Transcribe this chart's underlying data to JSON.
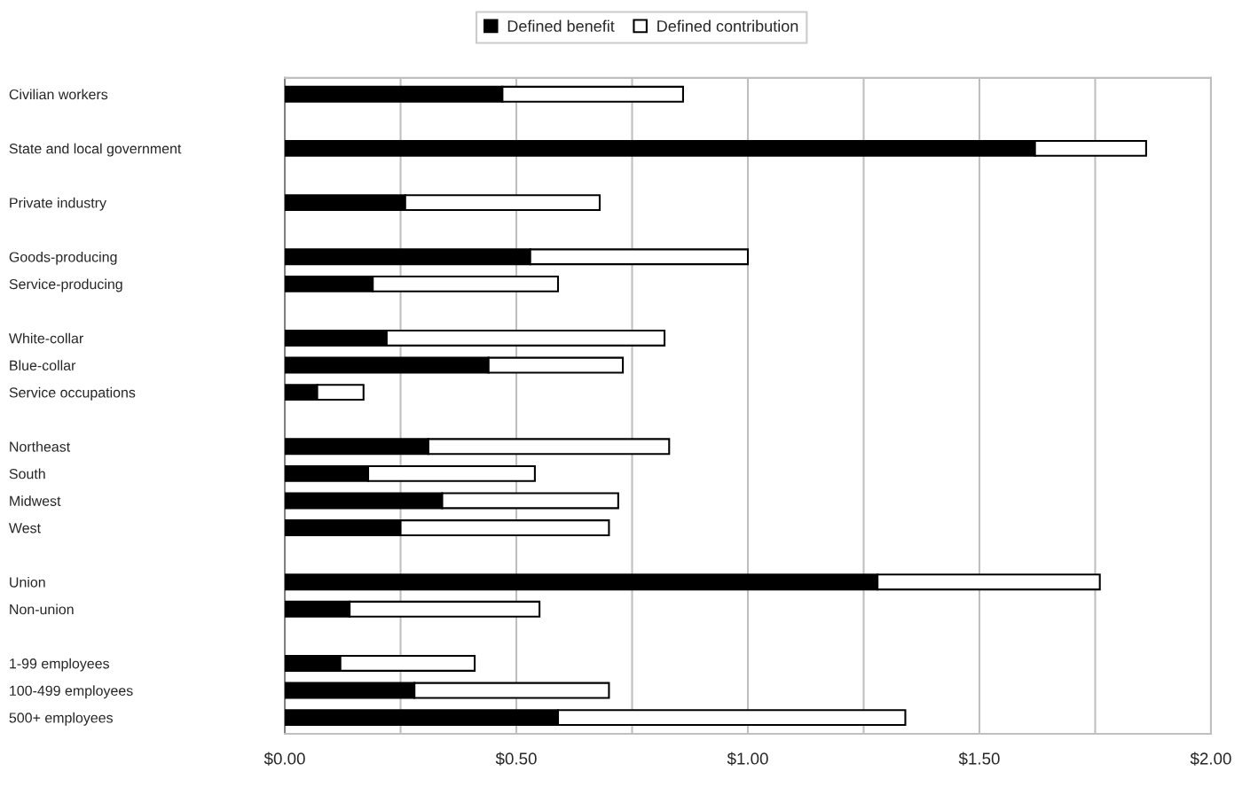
{
  "chart_data": {
    "type": "bar",
    "orientation": "horizontal",
    "stacked": true,
    "categories": [
      "Civilian workers",
      null,
      "State and local government",
      null,
      "Private industry",
      null,
      "Goods-producing",
      "Service-producing",
      null,
      "White-collar",
      "Blue-collar",
      "Service occupations",
      null,
      "Northeast",
      "South",
      "Midwest",
      "West",
      null,
      "Union",
      "Non-union",
      null,
      "1-99 employees",
      "100-499 employees",
      "500+ employees"
    ],
    "series": [
      {
        "name": "Defined benefit",
        "color": "#000000",
        "values": [
          0.47,
          null,
          1.62,
          null,
          0.26,
          null,
          0.53,
          0.19,
          null,
          0.22,
          0.44,
          0.07,
          null,
          0.31,
          0.18,
          0.34,
          0.25,
          null,
          1.28,
          0.14,
          null,
          0.12,
          0.28,
          0.59
        ]
      },
      {
        "name": "Defined contribution",
        "color": "#ffffff",
        "values": [
          0.39,
          null,
          0.24,
          null,
          0.42,
          null,
          0.47,
          0.4,
          null,
          0.6,
          0.29,
          0.1,
          null,
          0.52,
          0.36,
          0.38,
          0.45,
          null,
          0.48,
          0.41,
          null,
          0.29,
          0.42,
          0.75
        ]
      }
    ],
    "xlim": [
      0,
      2
    ],
    "xticks": [
      {
        "value": 0,
        "label": "$0.00"
      },
      {
        "value": 0.25,
        "label": null
      },
      {
        "value": 0.5,
        "label": "$0.50"
      },
      {
        "value": 0.75,
        "label": null
      },
      {
        "value": 1,
        "label": "$1.00"
      },
      {
        "value": 1.25,
        "label": null
      },
      {
        "value": 1.5,
        "label": "$1.50"
      },
      {
        "value": 1.75,
        "label": null
      },
      {
        "value": 2,
        "label": "$2.00"
      }
    ],
    "grid": "x",
    "legend": "top"
  }
}
